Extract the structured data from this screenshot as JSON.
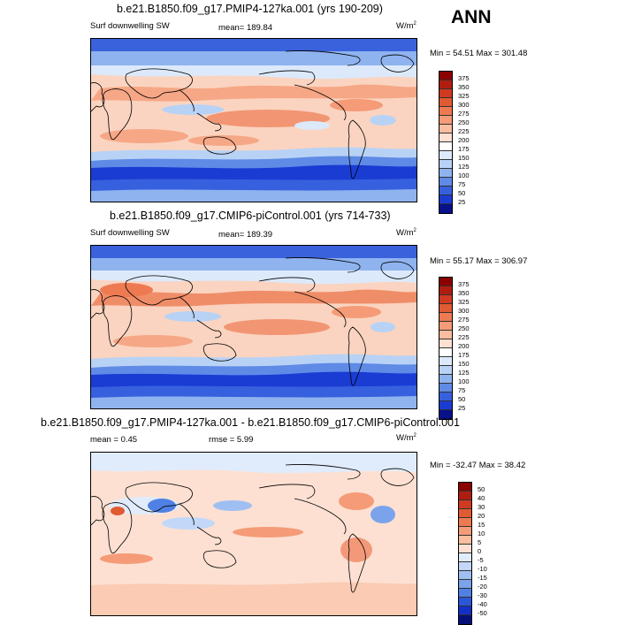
{
  "season_label": "ANN",
  "panels": [
    {
      "title": "b.e21.B1850.f09_g17.PMIP4-127ka.001 (yrs 190-209)",
      "variable": "Surf downwelling SW",
      "stat1": "mean=  189.84",
      "stat2": "",
      "units": "W/m",
      "units_exp": "2",
      "minmax": "Min =  54.51 Max = 301.48",
      "colorbar": {
        "labels": [
          "375",
          "350",
          "325",
          "300",
          "275",
          "250",
          "225",
          "200",
          "175",
          "150",
          "125",
          "100",
          "75",
          "50",
          "25"
        ],
        "colors": [
          "#8b0000",
          "#b01d10",
          "#cf3a20",
          "#e05a32",
          "#ee7a52",
          "#f59b77",
          "#fabd9f",
          "#fde0d2",
          "#ffffff",
          "#dce9fb",
          "#b8d2f6",
          "#8fb3ef",
          "#5f8ae6",
          "#3660dd",
          "#1a3cd3",
          "#08108a"
        ]
      }
    },
    {
      "title": "b.e21.B1850.f09_g17.CMIP6-piControl.001 (yrs 714-733)",
      "variable": "Surf downwelling SW",
      "stat1": "mean=  189.39",
      "stat2": "",
      "units": "W/m",
      "units_exp": "2",
      "minmax": "Min =  55.17 Max = 306.97",
      "colorbar": {
        "labels": [
          "375",
          "350",
          "325",
          "300",
          "275",
          "250",
          "225",
          "200",
          "175",
          "150",
          "125",
          "100",
          "75",
          "50",
          "25"
        ],
        "colors": [
          "#8b0000",
          "#b01d10",
          "#cf3a20",
          "#e05a32",
          "#ee7a52",
          "#f59b77",
          "#fabd9f",
          "#fde0d2",
          "#ffffff",
          "#dce9fb",
          "#b8d2f6",
          "#8fb3ef",
          "#5f8ae6",
          "#3660dd",
          "#1a3cd3",
          "#08108a"
        ]
      }
    },
    {
      "title": "b.e21.B1850.f09_g17.PMIP4-127ka.001 - b.e21.B1850.f09_g17.CMIP6-piControl.001",
      "variable": "",
      "stat1": "mean =   0.45",
      "stat2": "rmse =   5.99",
      "units": "W/m",
      "units_exp": "2",
      "minmax": "Min = -32.47 Max =  38.42",
      "colorbar": {
        "labels": [
          "50",
          "40",
          "30",
          "20",
          "15",
          "10",
          "5",
          "0",
          "-5",
          "-10",
          "-15",
          "-20",
          "-30",
          "-40",
          "-50"
        ],
        "colors": [
          "#8b0000",
          "#b01d10",
          "#cf3a20",
          "#e05a32",
          "#ee7a52",
          "#f59b77",
          "#fabd9f",
          "#fde0d2",
          "#e0ecfc",
          "#c3d8f8",
          "#9fbff2",
          "#7aa3ec",
          "#5080e3",
          "#2a56d8",
          "#1230c8",
          "#06107a"
        ]
      }
    }
  ]
}
